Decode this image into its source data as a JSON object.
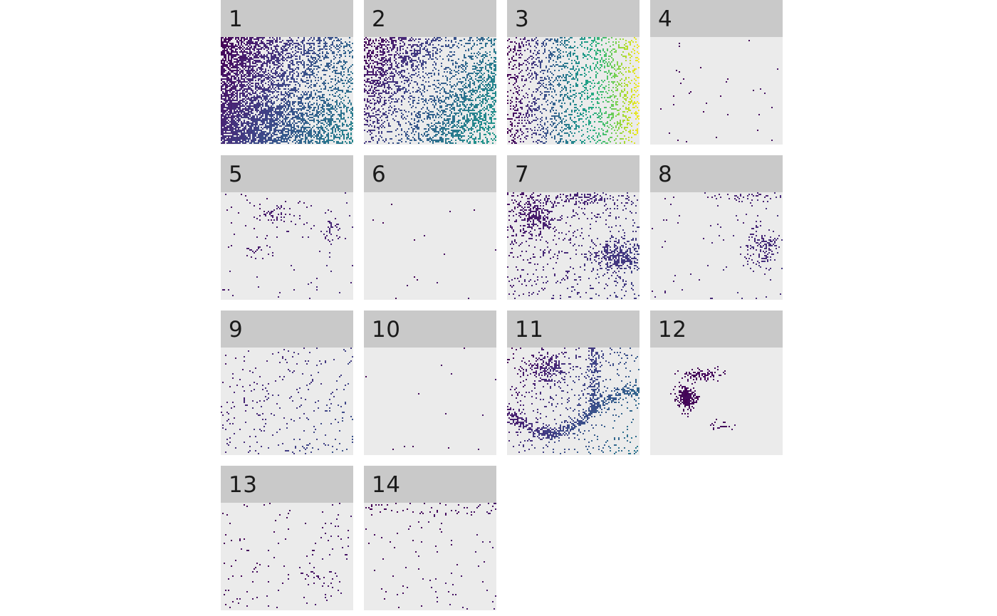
{
  "chart_data": {
    "type": "heatmap",
    "description_note": "",
    "layout": {
      "ncol": 4
    },
    "panels": [
      {
        "label": "1",
        "pattern": "dense-left-gradient",
        "density": 0.75,
        "color_range": [
          0.0,
          0.45
        ]
      },
      {
        "label": "2",
        "pattern": "medium-gradient",
        "density": 0.45,
        "color_range": [
          0.0,
          0.55
        ]
      },
      {
        "label": "3",
        "pattern": "sparse-full-gradient",
        "density": 0.3,
        "color_range": [
          0.0,
          1.0
        ]
      },
      {
        "label": "4",
        "pattern": "very-sparse",
        "density": 0.004,
        "color_range": [
          0.0,
          0.05
        ]
      },
      {
        "label": "5",
        "pattern": "blobs",
        "density": 0.05,
        "color_range": [
          0.05,
          0.12
        ]
      },
      {
        "label": "6",
        "pattern": "very-sparse",
        "density": 0.002,
        "color_range": [
          0.0,
          0.05
        ]
      },
      {
        "label": "7",
        "pattern": "large-blobs",
        "density": 0.14,
        "color_range": [
          0.05,
          0.2
        ]
      },
      {
        "label": "8",
        "pattern": "right-cluster",
        "density": 0.05,
        "color_range": [
          0.05,
          0.15
        ]
      },
      {
        "label": "9",
        "pattern": "sparse-dots",
        "density": 0.05,
        "color_range": [
          0.05,
          0.25
        ]
      },
      {
        "label": "10",
        "pattern": "very-sparse",
        "density": 0.002,
        "color_range": [
          0.0,
          0.05
        ]
      },
      {
        "label": "11",
        "pattern": "veins",
        "density": 0.15,
        "color_range": [
          0.0,
          0.4
        ]
      },
      {
        "label": "12",
        "pattern": "large-single-blob",
        "density": 0.04,
        "color_range": [
          0.0,
          0.05
        ]
      },
      {
        "label": "13",
        "pattern": "scattered-small",
        "density": 0.02,
        "color_range": [
          0.0,
          0.08
        ]
      },
      {
        "label": "14",
        "pattern": "top-edge-scatter",
        "density": 0.02,
        "color_range": [
          0.0,
          0.08
        ]
      }
    ],
    "colormap": "viridis",
    "xlabel": "",
    "ylabel": "",
    "title": "",
    "legend": "none",
    "grid": false
  }
}
